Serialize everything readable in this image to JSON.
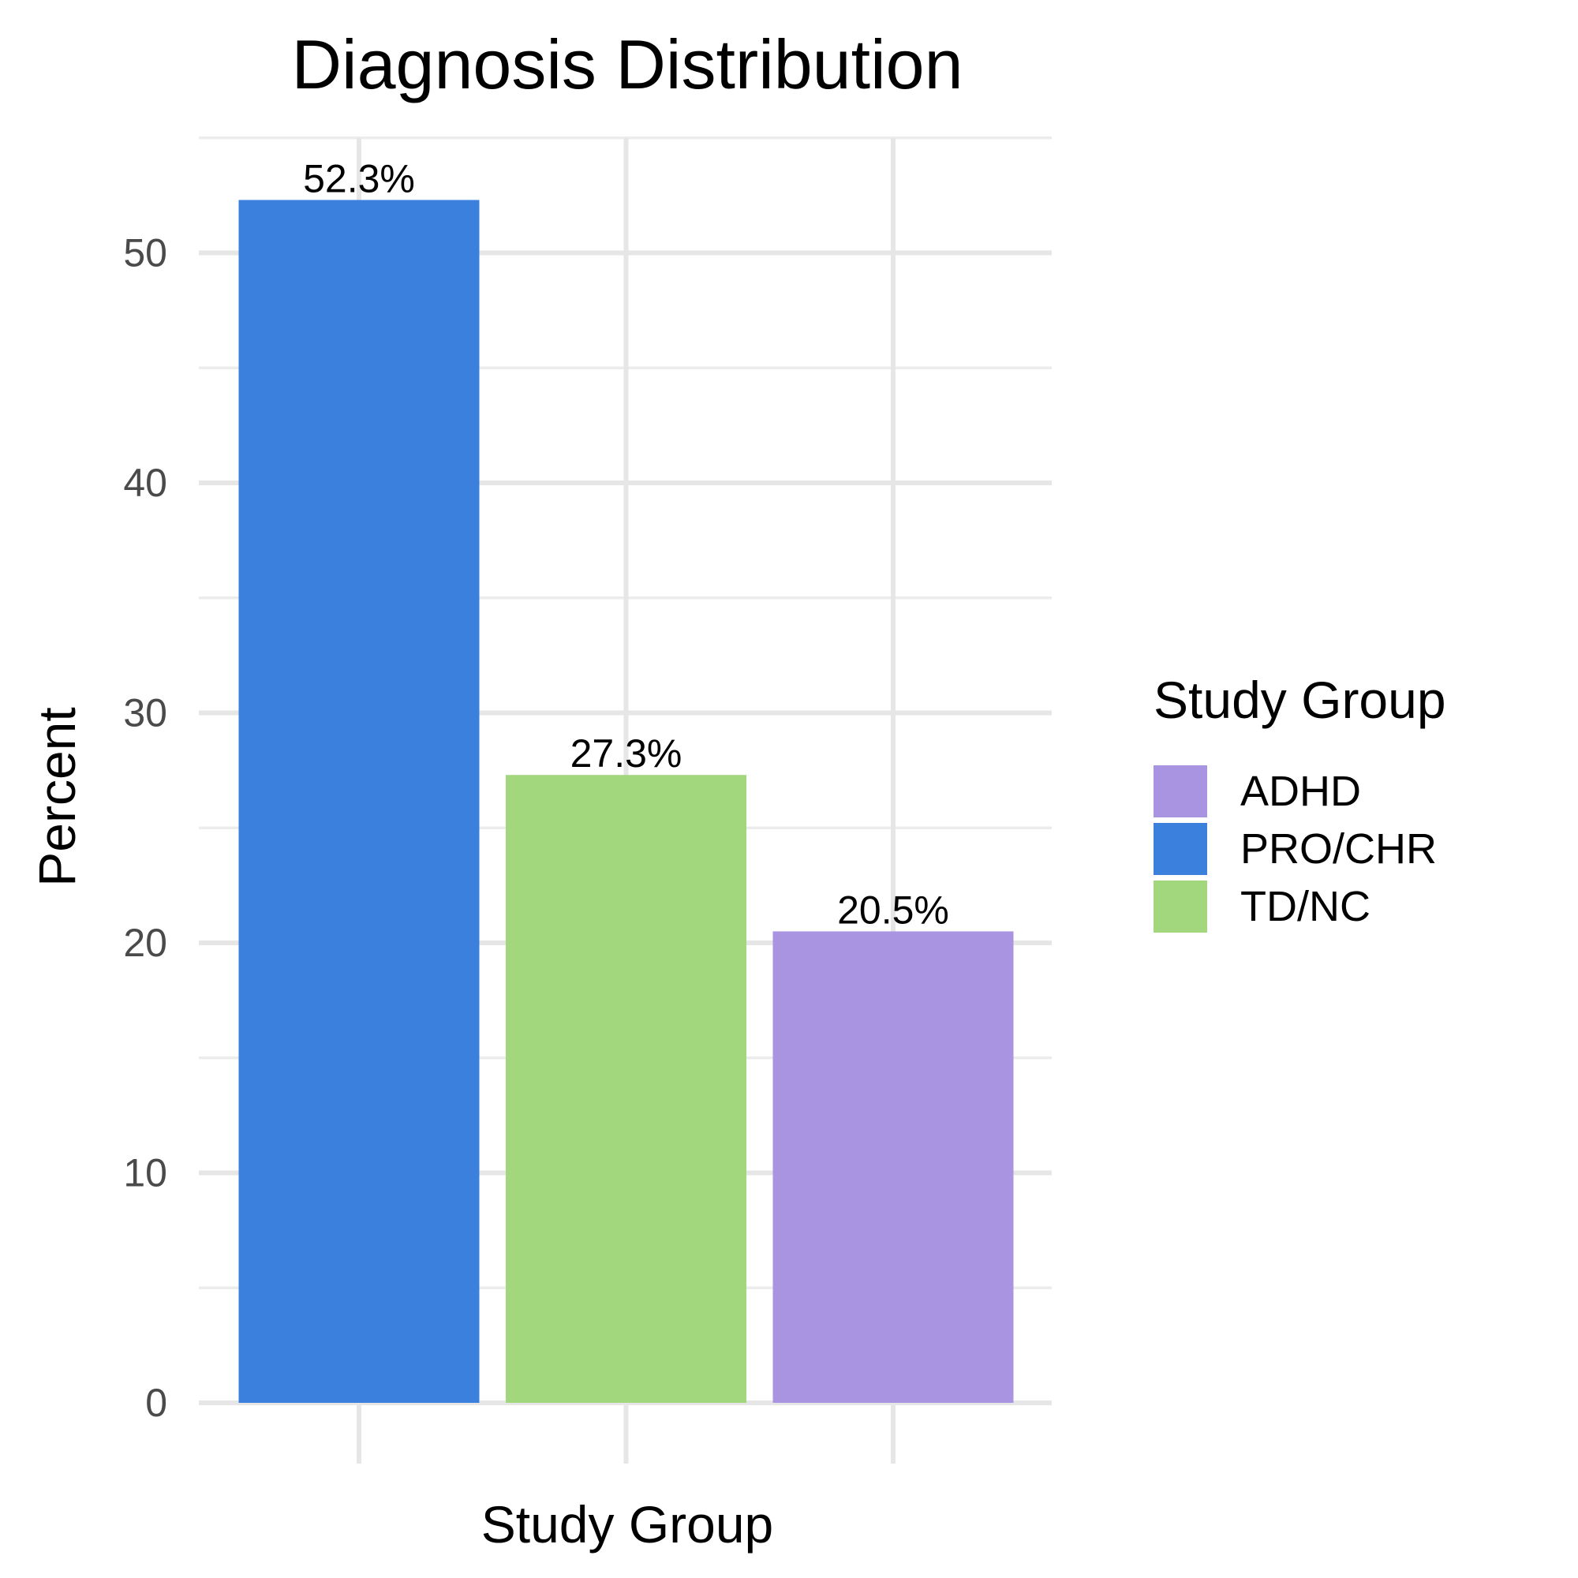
{
  "chart_data": {
    "type": "bar",
    "title": "Diagnosis Distribution",
    "xlabel": "Study Group",
    "ylabel": "Percent",
    "categories": [
      "PRO/CHR",
      "TD/NC",
      "ADHD"
    ],
    "values": [
      52.3,
      27.3,
      20.5
    ],
    "data_labels": [
      "52.3%",
      "27.3%",
      "20.5%"
    ],
    "colors": [
      "#3a80dc",
      "#a3d77e",
      "#a994e2"
    ],
    "ylim": [
      0,
      55
    ],
    "yticks": [
      0,
      10,
      20,
      30,
      40,
      50
    ],
    "ytick_labels": [
      "0",
      "10",
      "20",
      "30",
      "40",
      "50"
    ],
    "grid": true,
    "legend": {
      "title": "Study Group",
      "placement": "right",
      "entries": [
        {
          "label": "ADHD",
          "color": "#a994e2"
        },
        {
          "label": "PRO/CHR",
          "color": "#3a80dc"
        },
        {
          "label": "TD/NC",
          "color": "#a3d77e"
        }
      ]
    }
  }
}
